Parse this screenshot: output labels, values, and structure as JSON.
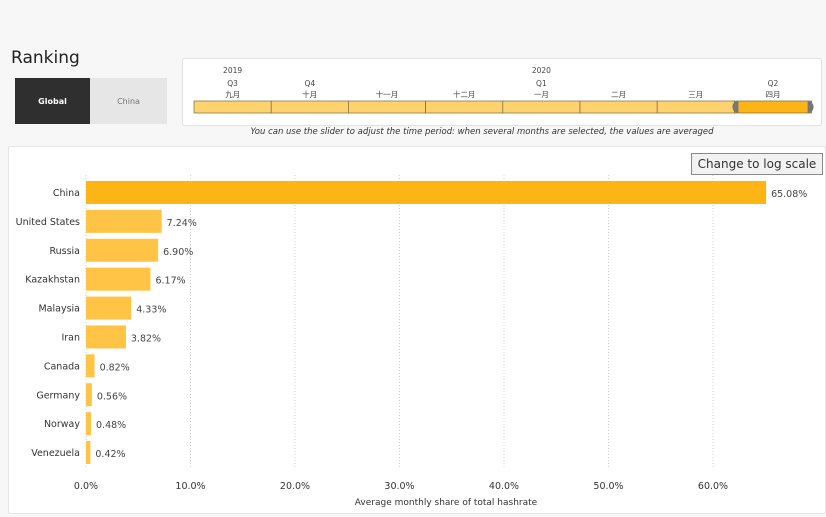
{
  "page": {
    "title": "Ranking",
    "tabs": [
      {
        "label": "Global",
        "active": true
      },
      {
        "label": "China",
        "active": false
      }
    ],
    "slider_note": "You can use the slider to adjust the time period: when several months are selected, the values are averaged",
    "log_button_label": "Change to log scale",
    "colors": {
      "bar": "#ffc445",
      "bar_top": "#fdb515",
      "selected_month": "#fdb515",
      "month": "#ffd270"
    }
  },
  "timeline": {
    "years": [
      "2019",
      "2020"
    ],
    "quarters": [
      "Q3",
      "Q4",
      "Q1",
      "Q2"
    ],
    "months": [
      "九月",
      "十月",
      "十一月",
      "十二月",
      "一月",
      "二月",
      "三月",
      "四月"
    ],
    "selected_month": "四月"
  },
  "chart_data": {
    "type": "bar",
    "orientation": "horizontal",
    "categories": [
      "China",
      "United States",
      "Russia",
      "Kazakhstan",
      "Malaysia",
      "Iran",
      "Canada",
      "Germany",
      "Norway",
      "Venezuela"
    ],
    "values": [
      65.08,
      7.24,
      6.9,
      6.17,
      4.33,
      3.82,
      0.82,
      0.56,
      0.48,
      0.42
    ],
    "value_labels": [
      "65.08%",
      "7.24%",
      "6.90%",
      "6.17%",
      "4.33%",
      "3.82%",
      "0.82%",
      "0.56%",
      "0.48%",
      "0.42%"
    ],
    "xticks": [
      "0.0%",
      "10.0%",
      "20.0%",
      "30.0%",
      "40.0%",
      "50.0%",
      "60.0%"
    ],
    "xlabel": "Average monthly share of total hashrate",
    "xlim": [
      0,
      66
    ],
    "grid": "vertical dotted"
  }
}
